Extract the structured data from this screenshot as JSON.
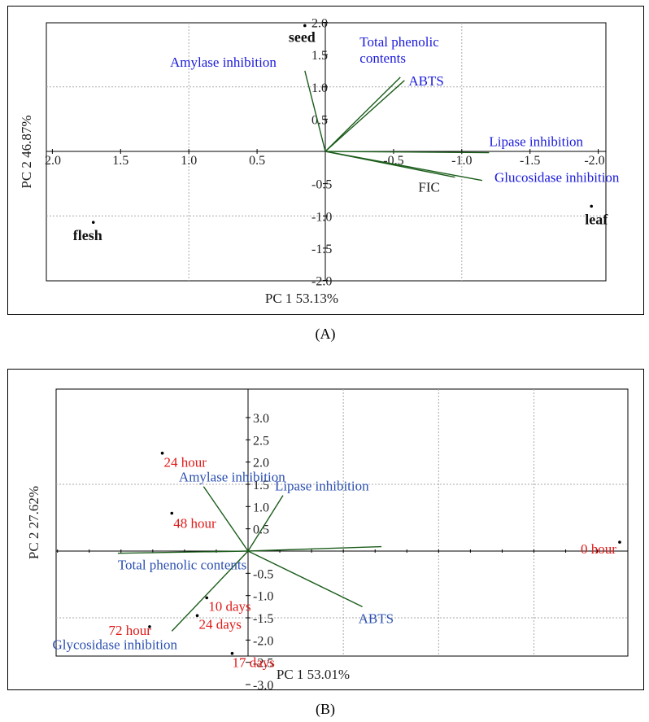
{
  "chart_data": [
    {
      "type": "scatter",
      "caption": "(A)",
      "xlabel": "PC 1 53.13%",
      "ylabel": "PC 2 46.87%",
      "xlim": [
        2.0,
        -2.1
      ],
      "ylim": [
        -2.0,
        2.0
      ],
      "x_ticks": [
        "2.0",
        "1.5",
        "1.0",
        "0.5",
        "-0.5",
        "-1.0",
        "-1.5",
        "-2.0"
      ],
      "x_tick_values": [
        2.0,
        1.5,
        1.0,
        0.5,
        -0.5,
        -1.0,
        -1.5,
        -2.0
      ],
      "y_ticks": [
        "2.0",
        "1.5",
        "1.0",
        "0.5",
        "-0.5",
        "-1.0",
        "-1.5",
        "-2.0"
      ],
      "y_tick_values": [
        2.0,
        1.5,
        1.0,
        0.5,
        -0.5,
        -1.0,
        -1.5,
        -2.0
      ],
      "gridlines_x": [
        1.0,
        0.0,
        -1.0
      ],
      "gridlines_y": [
        1.0,
        -1.0
      ],
      "grid": true,
      "colors": {
        "vector": "#1a5c1a",
        "vector_label": "#1a1adc",
        "point_label": "#111111",
        "fic_label": "#222222",
        "grid": "#aaaaaa"
      },
      "points": [
        {
          "label": "seed",
          "x": 0.15,
          "y": 1.95
        },
        {
          "label": "flesh",
          "x": 1.7,
          "y": -1.1
        },
        {
          "label": "leaf",
          "x": -1.95,
          "y": -0.85
        }
      ],
      "vectors": [
        {
          "label": "Amylase  inhibition",
          "x": 0.15,
          "y": 1.25
        },
        {
          "label": "Total phenolic",
          "label2": "contents",
          "x": -0.55,
          "y": 1.15
        },
        {
          "label": "ABTS",
          "x": -0.58,
          "y": 1.1
        },
        {
          "label": "Lipase inhibition",
          "x": -1.2,
          "y": -0.02
        },
        {
          "label": "Glucosidase inhibition",
          "x": -1.15,
          "y": -0.45
        },
        {
          "label": "FIC",
          "x": -0.95,
          "y": -0.4
        }
      ]
    },
    {
      "type": "scatter",
      "caption": "(B)",
      "xlabel": "PC 1 53.01%",
      "ylabel": "PC 2 27.62%",
      "xlim": [
        -0.62,
        1.18
      ],
      "ylim": [
        -3.0,
        3.0
      ],
      "y_ticks": [
        "3.0",
        "2.5",
        "2.0",
        "1.5",
        "1.0",
        "0.5",
        "-0.5",
        "-1.0",
        "-1.5",
        "-2.0",
        "-2.5",
        "-3.0"
      ],
      "y_tick_values": [
        3.0,
        2.5,
        2.0,
        1.5,
        1.0,
        0.5,
        -0.5,
        -1.0,
        -1.5,
        -2.0,
        -2.5,
        -3.0
      ],
      "gridlines_x": [
        0.3,
        0.6,
        0.9
      ],
      "gridlines_y": [
        1.5,
        -1.5
      ],
      "grid": true,
      "colors": {
        "vector": "#1a5c1a",
        "vector_label": "#2a4fb0",
        "point_label": "#e01818",
        "grid": "#aaaaaa"
      },
      "points": [
        {
          "label": "24 hour",
          "x": -0.27,
          "y": 2.2
        },
        {
          "label": "48 hour",
          "x": -0.24,
          "y": 0.85
        },
        {
          "label": "0 hour",
          "x": 1.17,
          "y": 0.2
        },
        {
          "label": "10 days",
          "x": -0.13,
          "y": -1.05
        },
        {
          "label": "24 days",
          "x": -0.16,
          "y": -1.45
        },
        {
          "label": "72 hour",
          "x": -0.31,
          "y": -1.7
        },
        {
          "label": "17 days",
          "x": -0.05,
          "y": -2.3
        }
      ],
      "vectors": [
        {
          "label": "Amylase inhibition",
          "x": -0.14,
          "y": 1.45
        },
        {
          "label": "Lipase inhibition",
          "x": 0.11,
          "y": 1.25
        },
        {
          "label": "Total phenolic contents",
          "x": -0.41,
          "y": -0.05
        },
        {
          "label": "",
          "x": 0.42,
          "y": 0.1
        },
        {
          "label": "ABTS",
          "x": 0.36,
          "y": -1.25
        },
        {
          "label": "Glycosidase inhibition",
          "x": -0.24,
          "y": -1.8
        }
      ]
    }
  ]
}
